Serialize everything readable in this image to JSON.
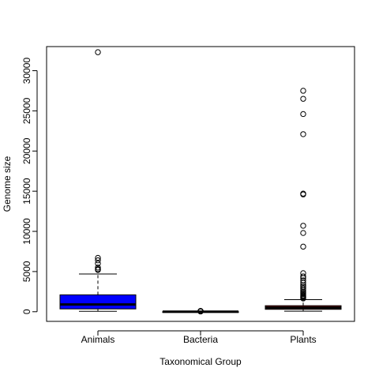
{
  "chart_data": {
    "type": "boxplot",
    "title": "",
    "xlabel": "Taxonomical Group",
    "ylabel": "Genome size",
    "ylim": [
      -1200,
      33000
    ],
    "yticks": [
      0,
      5000,
      10000,
      15000,
      20000,
      25000,
      30000
    ],
    "ytick_labels": [
      "0",
      "5000",
      "10000",
      "15000",
      "20000",
      "25000",
      "30000"
    ],
    "grid": false,
    "legend": "none",
    "categories": [
      "Animals",
      "Bacteria",
      "Plants"
    ],
    "boxes": [
      {
        "name": "Animals",
        "color": "#0000ff",
        "whisker_low": 50,
        "q1": 350,
        "median": 900,
        "q3": 2100,
        "whisker_high": 4700,
        "outliers": [
          32300,
          6700,
          6400,
          6000,
          5500,
          5300,
          5200
        ]
      },
      {
        "name": "Bacteria",
        "color": "#ffffff",
        "whisker_low": 0,
        "q1": 2,
        "median": 5,
        "q3": 8,
        "whisker_high": 14,
        "outliers": [
          30,
          45,
          60,
          80,
          100
        ]
      },
      {
        "name": "Plants",
        "color": "#8b0000",
        "whisker_low": 60,
        "q1": 300,
        "median": 500,
        "q3": 750,
        "whisker_high": 1500,
        "outliers": [
          27500,
          26500,
          24600,
          22100,
          14700,
          14600,
          10700,
          9800,
          8100,
          4800,
          4400,
          4200,
          3900,
          3600,
          3300,
          3100,
          2900,
          2700,
          2500,
          2350,
          2200,
          2050,
          1950,
          1850,
          1750,
          1650
        ]
      }
    ]
  }
}
